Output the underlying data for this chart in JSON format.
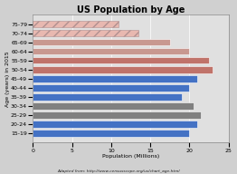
{
  "title": "US Population by Age",
  "xlabel": "Population (Millions)",
  "ylabel": "Age (years) in 2015",
  "footnote": "Adapted from: http://www.censusscope.org/us/chart_age.html",
  "categories_bottom_to_top": [
    "15-19",
    "20-24",
    "25-29",
    "30-34",
    "35-39",
    "40-44",
    "45-49",
    "50-54",
    "55-59",
    "60-64",
    "65-69",
    "70-74",
    "75-79"
  ],
  "values_bottom_to_top": [
    20.0,
    21.0,
    21.5,
    20.5,
    19.0,
    20.0,
    21.0,
    23.0,
    22.5,
    20.0,
    17.5,
    13.5,
    11.0
  ],
  "bar_face_colors": [
    "#4472c4",
    "#4472c4",
    "#808080",
    "#808080",
    "#4472c4",
    "#4472c4",
    "#4472c4",
    "#c0736a",
    "#c0736a",
    "#c89890",
    "#c89890",
    "#e8b8b0",
    "#e8b8b0"
  ],
  "bar_hatch": [
    "",
    "",
    "",
    "",
    "",
    "",
    "",
    "",
    "",
    "",
    "",
    "///",
    "///"
  ],
  "bar_edge_colors": [
    "white",
    "white",
    "white",
    "white",
    "white",
    "white",
    "white",
    "white",
    "white",
    "white",
    "white",
    "#b09090",
    "#b09090"
  ],
  "xlim": [
    0,
    25
  ],
  "xticks": [
    0,
    5,
    10,
    15,
    20,
    25
  ],
  "fig_bg": "#d0d0d0",
  "ax_bg": "#e0e0e0",
  "title_fontsize": 7,
  "label_fontsize": 4.5,
  "tick_fontsize": 4.5,
  "footnote_fontsize": 3.2,
  "bar_height": 0.75
}
